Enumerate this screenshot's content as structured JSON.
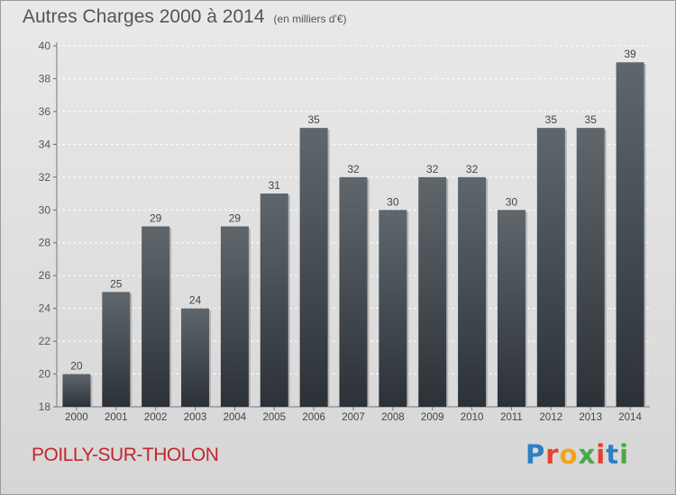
{
  "header": {
    "title": "Autres Charges 2000 à 2014",
    "subtitle": "(en milliers d'€)"
  },
  "footer": {
    "commune": "POILLY-SUR-THOLON",
    "logo": {
      "text": "Proxiti",
      "colors": [
        "#2f7ec4",
        "#e8412b",
        "#f6a21c",
        "#4aa84a",
        "#e8412b",
        "#2f7ec4",
        "#4aa84a"
      ]
    }
  },
  "colors": {
    "bar_top": "#5f676d",
    "bar_bottom": "#2b3137",
    "title": "#555555",
    "commune": "#c1272d"
  },
  "chart_data": {
    "type": "bar",
    "categories": [
      "2000",
      "2001",
      "2002",
      "2003",
      "2004",
      "2005",
      "2006",
      "2007",
      "2008",
      "2009",
      "2010",
      "2011",
      "2012",
      "2013",
      "2014"
    ],
    "values": [
      20,
      25,
      29,
      24,
      29,
      31,
      35,
      32,
      30,
      32,
      32,
      30,
      35,
      35,
      39
    ],
    "title": "Autres Charges 2000 à 2014",
    "subtitle": "(en milliers d'€)",
    "ylim": [
      18,
      40
    ],
    "yticks": [
      18,
      20,
      22,
      24,
      26,
      28,
      30,
      32,
      34,
      36,
      38,
      40
    ],
    "grid": true,
    "data_labels": true
  }
}
